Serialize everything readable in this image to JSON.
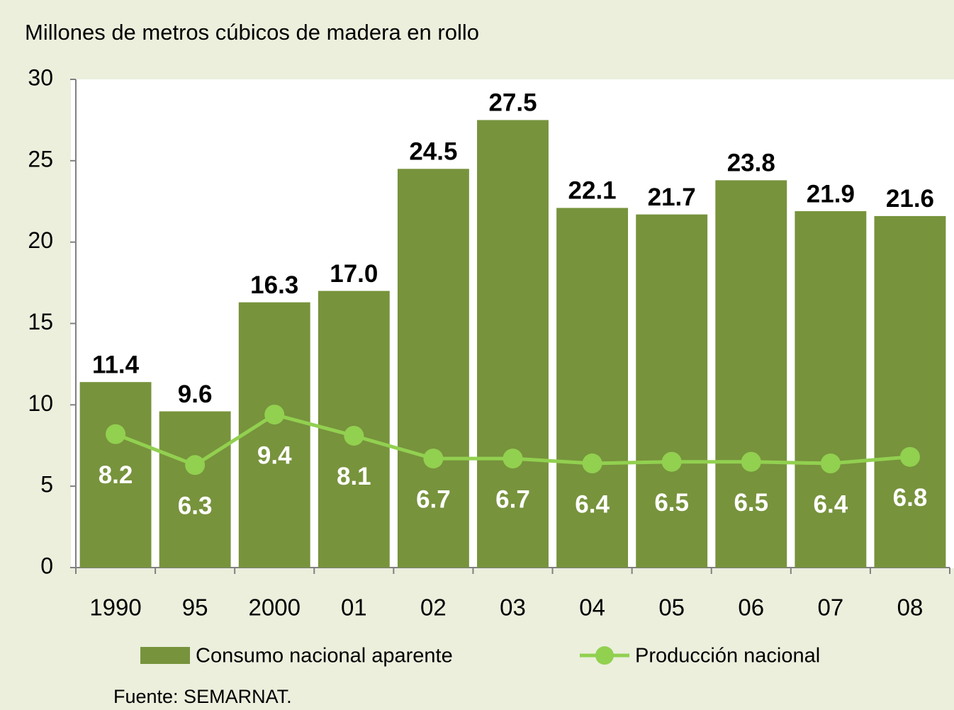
{
  "chart_data": {
    "type": "bar",
    "title": "Millones de metros cúbicos de madera  en rollo",
    "source": "Fuente: SEMARNAT.",
    "categories": [
      "1990",
      "95",
      "2000",
      "01",
      "02",
      "03",
      "04",
      "05",
      "06",
      "07",
      "08"
    ],
    "series": [
      {
        "name": "Consumo nacional aparente",
        "type": "bar",
        "color": "#77933c",
        "values": [
          11.4,
          9.6,
          16.3,
          17.0,
          24.5,
          27.5,
          22.1,
          21.7,
          23.8,
          21.9,
          21.6
        ],
        "value_labels": [
          "11.4",
          "9.6",
          "16.3",
          "17.0",
          "24.5",
          "27.5",
          "22.1",
          "21.7",
          "23.8",
          "21.9",
          "21.6"
        ]
      },
      {
        "name": "Producción nacional",
        "type": "line",
        "color": "#92d050",
        "values": [
          8.2,
          6.3,
          9.4,
          8.1,
          6.7,
          6.7,
          6.4,
          6.5,
          6.5,
          6.4,
          6.8
        ]
      }
    ],
    "ylim": [
      0,
      30
    ],
    "yticks": [
      0,
      5,
      10,
      15,
      20,
      25,
      30
    ],
    "grid": false
  }
}
